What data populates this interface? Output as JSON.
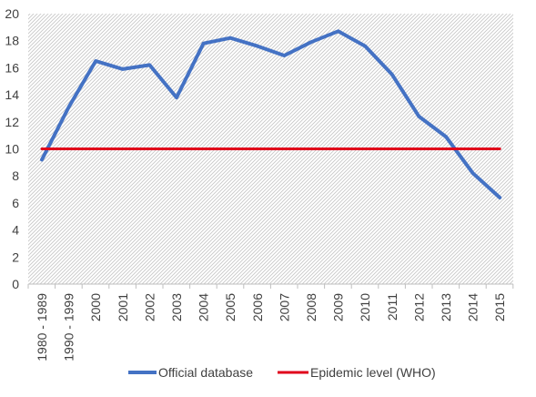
{
  "chart_data": {
    "type": "line",
    "title": "",
    "xlabel": "",
    "ylabel": "",
    "ylim": [
      0,
      20
    ],
    "yticks": [
      0,
      2,
      4,
      6,
      8,
      10,
      12,
      14,
      16,
      18,
      20
    ],
    "grid": "hatched plot background, no gridlines",
    "legend_position": "bottom-center",
    "categories": [
      "1980 - 1989",
      "1990 - 1999",
      "2000",
      "2001",
      "2002",
      "2003",
      "2004",
      "2005",
      "2006",
      "2007",
      "2008",
      "2009",
      "2010",
      "2011",
      "2012",
      "2013",
      "2014",
      "2015"
    ],
    "series": [
      {
        "name": "Official database",
        "color": "#4472C4",
        "values": [
          9.2,
          13.1,
          16.5,
          15.9,
          16.2,
          13.8,
          17.8,
          18.2,
          17.6,
          16.9,
          17.9,
          18.7,
          17.6,
          15.5,
          12.4,
          10.9,
          8.2,
          6.4
        ]
      },
      {
        "name": "Epidemic level (WHO)",
        "color": "#E0001B",
        "values": [
          10,
          10,
          10,
          10,
          10,
          10,
          10,
          10,
          10,
          10,
          10,
          10,
          10,
          10,
          10,
          10,
          10,
          10
        ]
      }
    ]
  }
}
